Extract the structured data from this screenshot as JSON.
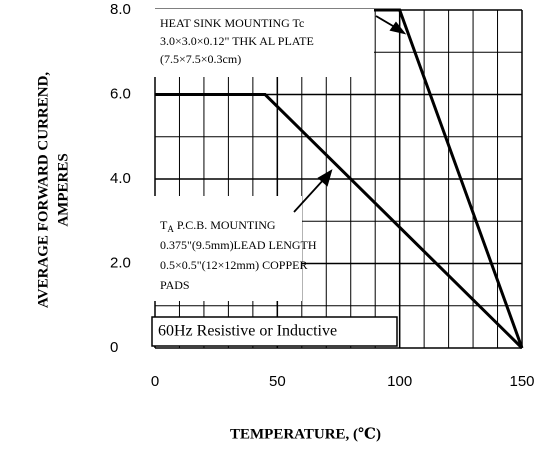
{
  "chart_data": {
    "type": "line",
    "x_label": "TEMPERATURE, (℃)",
    "y_label": [
      "AVERAGE FORWARD CURREND,",
      "AMPERES"
    ],
    "xlim": [
      0,
      150
    ],
    "ylim": [
      0,
      8
    ],
    "xticks": [
      0,
      50,
      100,
      150
    ],
    "yticks": [
      0,
      {
        "value": 2,
        "label": "2.0"
      },
      {
        "value": 4,
        "label": "4.0"
      },
      {
        "value": 6,
        "label": "6.0"
      },
      {
        "value": 8,
        "label": "8.0"
      }
    ],
    "x_gridlines": [
      10,
      20,
      30,
      40,
      50,
      60,
      70,
      80,
      90,
      100,
      110,
      120,
      130,
      140
    ],
    "y_gridlines": [
      1,
      2,
      3,
      4,
      5,
      6,
      7
    ],
    "grid": true,
    "series": [
      {
        "color": "#000000",
        "x": [
          0,
          100,
          150
        ],
        "values": [
          8,
          8,
          0
        ]
      },
      {
        "color": "#000000",
        "x": [
          0,
          45,
          150
        ],
        "values": [
          6,
          6,
          0
        ]
      }
    ],
    "annotations": {
      "heat_sink": [
        "HEAT SINK MOUNTING Tc",
        "3.0×3.0×0.12\" THK AL PLATE",
        "(7.5×7.5×0.3cm)"
      ],
      "pcb_head": {
        "base": "T",
        "sub": "A",
        "rest": " P.C.B. MOUNTING"
      },
      "pcb": [
        "0.375\"(9.5mm)LEAD LENGTH",
        "0.5×0.5\"(12×12mm) COPPER",
        "PADS"
      ],
      "note": "60Hz Resistive or Inductive"
    }
  }
}
